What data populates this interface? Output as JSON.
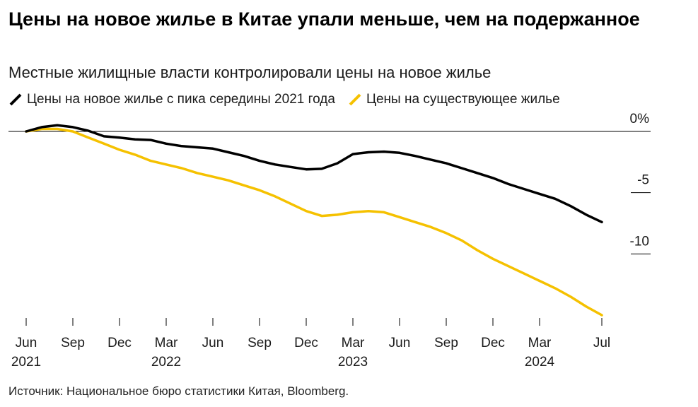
{
  "header": {
    "title": "Цены на новое жилье в Китае упали меньше, чем на подержанное",
    "subtitle": "Местные жилищные власти контролировали цены на новое жилье"
  },
  "footer": {
    "source": "Источник: Национальное бюро статистики Китая, Bloomberg."
  },
  "chart_data": {
    "type": "line",
    "title": "Цены на новое жилье в Китае упали меньше, чем на подержанное",
    "subtitle": "Местные жилищные власти контролировали цены на новое жилье",
    "xlabel": "",
    "ylabel": "",
    "x": [
      "2021-06",
      "2021-07",
      "2021-08",
      "2021-09",
      "2021-10",
      "2021-11",
      "2021-12",
      "2022-01",
      "2022-02",
      "2022-03",
      "2022-04",
      "2022-05",
      "2022-06",
      "2022-07",
      "2022-08",
      "2022-09",
      "2022-10",
      "2022-11",
      "2022-12",
      "2023-01",
      "2023-02",
      "2023-03",
      "2023-04",
      "2023-05",
      "2023-06",
      "2023-07",
      "2023-08",
      "2023-09",
      "2023-10",
      "2023-11",
      "2023-12",
      "2024-01",
      "2024-02",
      "2024-03",
      "2024-04",
      "2024-05",
      "2024-06",
      "2024-07"
    ],
    "series": [
      {
        "name": "Цены на новое жилье с пика середины 2021 года",
        "color": "#000000",
        "values": [
          0,
          0.35,
          0.5,
          0.35,
          0.05,
          -0.4,
          -0.5,
          -0.65,
          -0.7,
          -1.0,
          -1.2,
          -1.3,
          -1.4,
          -1.7,
          -2.0,
          -2.4,
          -2.7,
          -2.9,
          -3.1,
          -3.05,
          -2.6,
          -1.85,
          -1.7,
          -1.65,
          -1.75,
          -2.0,
          -2.3,
          -2.6,
          -3.0,
          -3.4,
          -3.8,
          -4.3,
          -4.7,
          -5.1,
          -5.5,
          -6.1,
          -6.8,
          -7.4
        ],
        "x_start_index": 0
      },
      {
        "name": "Цены на существующее жилье",
        "color": "#f5c100",
        "values": [
          0,
          0.2,
          0.2,
          0.0,
          -0.5,
          -1.0,
          -1.5,
          -1.9,
          -2.4,
          -2.7,
          -3.0,
          -3.4,
          -3.7,
          -4.0,
          -4.4,
          -4.8,
          -5.3,
          -5.9,
          -6.5,
          -6.9,
          -6.8,
          -6.6,
          -6.5,
          -6.6,
          -7.0,
          -7.4,
          -7.8,
          -8.3,
          -8.9,
          -9.7,
          -10.4,
          -11.0,
          -11.6,
          -12.2,
          -12.8,
          -13.5,
          -14.3,
          -15.0
        ],
        "x_start_index": 0
      }
    ],
    "x_ticks": [
      {
        "label": "Jun",
        "year": "2021",
        "x": "2021-06"
      },
      {
        "label": "Sep",
        "year": "",
        "x": "2021-09"
      },
      {
        "label": "Dec",
        "year": "",
        "x": "2021-12"
      },
      {
        "label": "Mar",
        "year": "2022",
        "x": "2022-03"
      },
      {
        "label": "Jun",
        "year": "",
        "x": "2022-06"
      },
      {
        "label": "Sep",
        "year": "",
        "x": "2022-09"
      },
      {
        "label": "Dec",
        "year": "",
        "x": "2022-12"
      },
      {
        "label": "Mar",
        "year": "2023",
        "x": "2023-03"
      },
      {
        "label": "Jun",
        "year": "",
        "x": "2023-06"
      },
      {
        "label": "Sep",
        "year": "",
        "x": "2023-09"
      },
      {
        "label": "Dec",
        "year": "",
        "x": "2023-12"
      },
      {
        "label": "Mar",
        "year": "2024",
        "x": "2024-03"
      },
      {
        "label": "Jul",
        "year": "",
        "x": "2024-07"
      }
    ],
    "y_ticks": [
      {
        "value": 0,
        "label": "0%"
      },
      {
        "value": -5,
        "label": "-5"
      },
      {
        "value": -10,
        "label": "-10"
      }
    ],
    "ylim": [
      -15,
      0
    ],
    "xlim": [
      "2021-06",
      "2024-07"
    ],
    "grid": false,
    "zero_line": true,
    "legend_position": "top-left",
    "y_axis_position": "right"
  }
}
